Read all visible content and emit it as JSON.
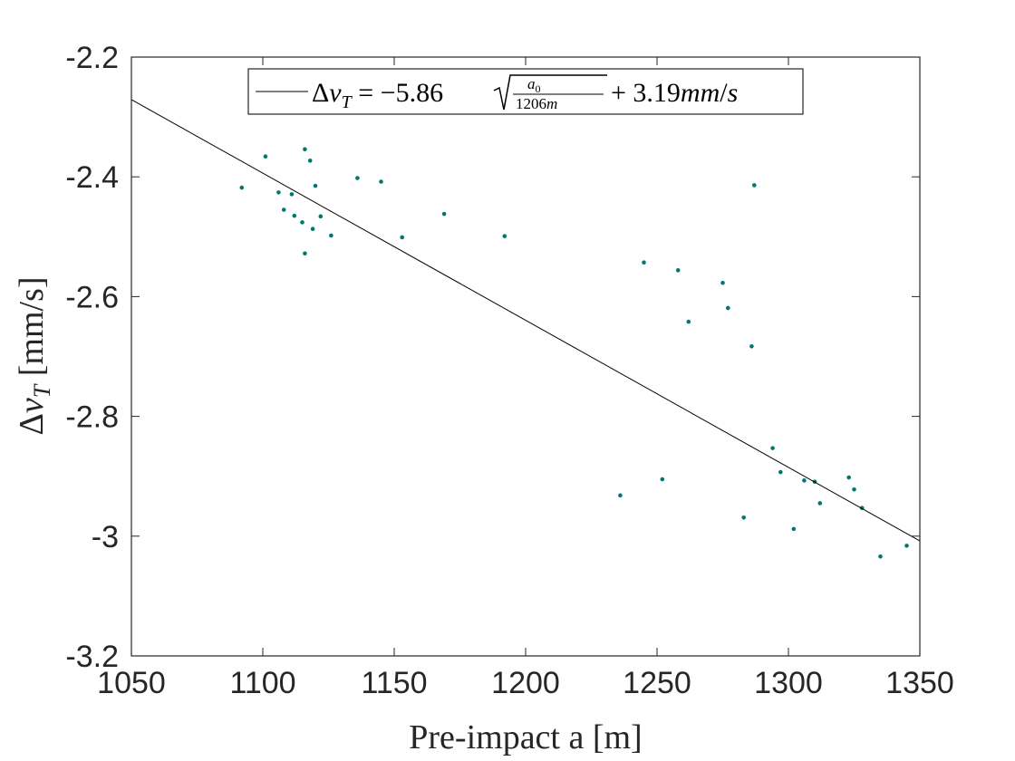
{
  "chart_data": {
    "type": "scatter",
    "xlabel": "Pre-impact a [m]",
    "ylabel": "Δv_T [mm/s]",
    "xlim": [
      1050,
      1350
    ],
    "ylim": [
      -3.2,
      -2.2
    ],
    "xticks": [
      "1050",
      "1100",
      "1150",
      "1200",
      "1250",
      "1300",
      "1350"
    ],
    "yticks": [
      "-2.2",
      "-2.4",
      "-2.6",
      "-2.8",
      "-3",
      "-3.2"
    ],
    "grid": false,
    "legend_position": "top",
    "legend": {
      "label": "Δv_T = -5.86 √(a0 / 1206m) + 3.19mm/s"
    },
    "fit_line": {
      "points": [
        [
          1050,
          -2.271
        ],
        [
          1350,
          -3.008
        ]
      ]
    },
    "series": [
      {
        "marker_color": "#00786e",
        "points": [
          [
            1092,
            -2.418
          ],
          [
            1101,
            -2.366
          ],
          [
            1106,
            -2.426
          ],
          [
            1111,
            -2.429
          ],
          [
            1116,
            -2.354
          ],
          [
            1118,
            -2.373
          ],
          [
            1120,
            -2.415
          ],
          [
            1122,
            -2.466
          ],
          [
            1126,
            -2.498
          ],
          [
            1136,
            -2.402
          ],
          [
            1145,
            -2.408
          ],
          [
            1153,
            -2.501
          ],
          [
            1169,
            -2.462
          ],
          [
            1192,
            -2.499
          ],
          [
            1245,
            -2.543
          ],
          [
            1258,
            -2.556
          ],
          [
            1275,
            -2.577
          ],
          [
            1277,
            -2.619
          ],
          [
            1287,
            -2.414
          ],
          [
            1306,
            -2.907
          ],
          [
            1310,
            -2.909
          ],
          [
            1323,
            -2.902
          ],
          [
            1325,
            -2.922
          ],
          [
            1335,
            -3.034
          ],
          [
            1345,
            -3.016
          ],
          [
            1302,
            -2.988
          ],
          [
            1283,
            -2.969
          ],
          [
            1262,
            -2.642
          ],
          [
            1286,
            -2.683
          ],
          [
            1252,
            -2.905
          ],
          [
            1108,
            -2.455
          ],
          [
            1112,
            -2.465
          ],
          [
            1115,
            -2.476
          ],
          [
            1119,
            -2.487
          ],
          [
            1116,
            -2.528
          ],
          [
            1294,
            -2.853
          ],
          [
            1297,
            -2.893
          ],
          [
            1312,
            -2.945
          ],
          [
            1328,
            -2.953
          ],
          [
            1236,
            -2.932
          ]
        ]
      }
    ]
  }
}
